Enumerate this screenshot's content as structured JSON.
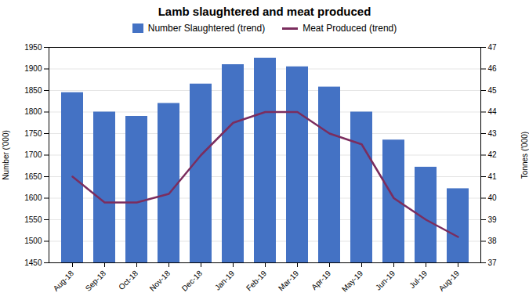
{
  "chart_data": {
    "type": "bar",
    "title": "Lamb slaughtered and meat produced",
    "categories": [
      "Aug-18",
      "Sep-18",
      "Oct-18",
      "Nov-18",
      "Dec-18",
      "Jan-19",
      "Feb-19",
      "Mar-19",
      "Apr-19",
      "May-19",
      "Jun-19",
      "Jul-19",
      "Aug-19"
    ],
    "series": [
      {
        "name": "Number Slaughtered (trend)",
        "type": "bar",
        "color": "#4472C4",
        "values": [
          1845,
          1800,
          1790,
          1820,
          1865,
          1910,
          1925,
          1905,
          1858,
          1800,
          1735,
          1672,
          1622
        ]
      },
      {
        "name": "Meat Produced (trend)",
        "type": "line",
        "color": "#7B2D5E",
        "axis": "y2",
        "values": [
          41.0,
          39.8,
          39.8,
          40.2,
          42.0,
          43.5,
          44.0,
          44.0,
          43.0,
          42.5,
          40.0,
          39.0,
          38.2
        ]
      }
    ],
    "ylabel": "Number ('000)",
    "y2label": "Tonnes ('000)",
    "ylim": [
      1450,
      1950
    ],
    "yticks": [
      1450,
      1500,
      1550,
      1600,
      1650,
      1700,
      1750,
      1800,
      1850,
      1900,
      1950
    ],
    "y2lim": [
      37,
      47
    ],
    "y2ticks": [
      37,
      38,
      39,
      40,
      41,
      42,
      43,
      44,
      45,
      46,
      47
    ],
    "grid": true,
    "legend": "top"
  }
}
